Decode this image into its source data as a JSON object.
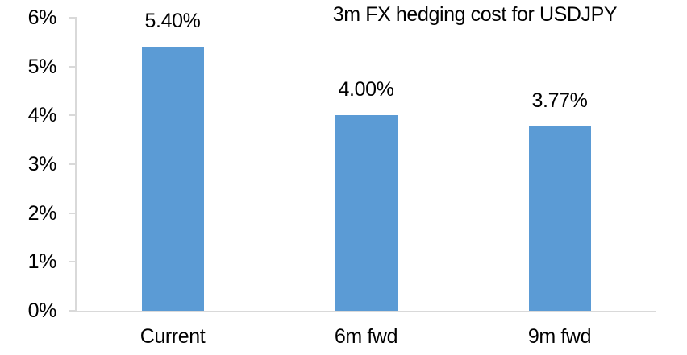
{
  "chart_data": {
    "type": "bar",
    "title": "3m FX hedging cost for USDJPY",
    "categories": [
      "Current",
      "6m fwd",
      "9m fwd"
    ],
    "values": [
      5.4,
      4.0,
      3.77
    ],
    "bar_labels": [
      "5.40%",
      "4.00%",
      "3.77%"
    ],
    "y_tick_labels": [
      "0%",
      "1%",
      "2%",
      "3%",
      "4%",
      "5%",
      "6%"
    ],
    "y_tick_values": [
      0,
      1,
      2,
      3,
      4,
      5,
      6
    ],
    "ylim": [
      0,
      6
    ],
    "xlabel": "",
    "ylabel": "",
    "grid": false,
    "legend_position": "none",
    "colors": {
      "bar": "#5B9BD5",
      "axis": "#D9D9D9",
      "text": "#000000",
      "background": "#FFFFFF"
    }
  }
}
